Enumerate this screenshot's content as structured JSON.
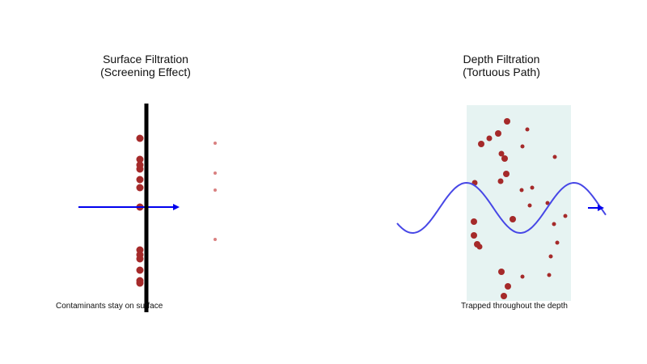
{
  "surface": {
    "title_line1": "Surface Filtration",
    "title_line2": "(Screening Effect)",
    "caption": "Contaminants stay on surface"
  },
  "depth": {
    "title_line1": "Depth Filtration",
    "title_line2": "(Tortuous Path)",
    "caption": "Trapped throughout the depth"
  },
  "colors": {
    "particle": "#a52a2a",
    "passed_particle": "#d98080",
    "filter_line": "#000000",
    "flow_arrow": "#0000ee",
    "flow_wave": "#4747e6",
    "depth_medium": "#e6f3f2"
  }
}
